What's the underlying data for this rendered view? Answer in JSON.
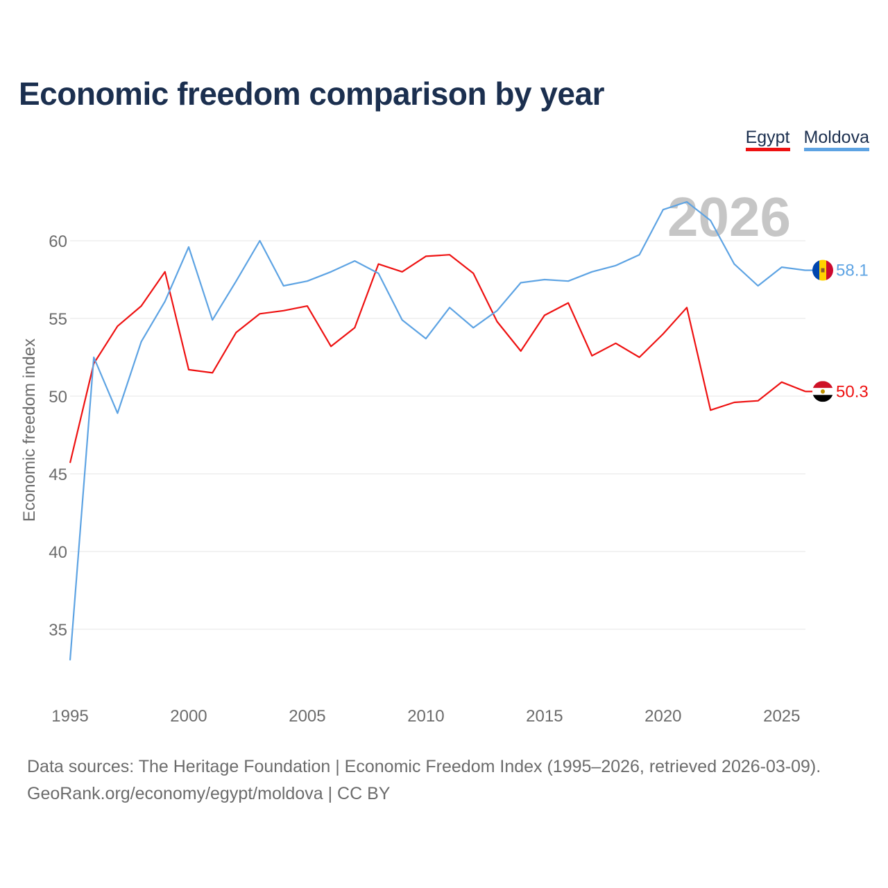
{
  "title": "Economic freedom comparison by year",
  "legend": [
    {
      "name": "Egypt",
      "color": "#ee1111"
    },
    {
      "name": "Moldova",
      "color": "#5da3e3"
    }
  ],
  "footer": {
    "line1": "Data sources: The Heritage Foundation | Economic Freedom Index (1995–2026, retrieved 2026-03-09).",
    "line2": "GeoRank.org/economy/egypt/moldova | CC BY"
  },
  "chart_data": {
    "type": "line",
    "title": "Economic freedom comparison by year",
    "xlabel": "",
    "ylabel": "Economic freedom index",
    "year_label": "2026",
    "xlim": [
      1995,
      2026
    ],
    "ylim": [
      31,
      65
    ],
    "xticks": [
      1995,
      2000,
      2005,
      2010,
      2015,
      2020,
      2025
    ],
    "yticks": [
      35,
      40,
      45,
      50,
      55,
      60
    ],
    "x": [
      1995,
      1996,
      1997,
      1998,
      1999,
      2000,
      2001,
      2002,
      2003,
      2004,
      2005,
      2006,
      2007,
      2008,
      2009,
      2010,
      2011,
      2012,
      2013,
      2014,
      2015,
      2016,
      2017,
      2018,
      2019,
      2020,
      2021,
      2022,
      2023,
      2024,
      2025,
      2026
    ],
    "series": [
      {
        "name": "Egypt",
        "color": "#ee1111",
        "end_label": "50.3",
        "flag": "egypt-flag",
        "values": [
          45.7,
          52.1,
          54.5,
          55.8,
          58.0,
          51.7,
          51.5,
          54.1,
          55.3,
          55.5,
          55.8,
          53.2,
          54.4,
          58.5,
          58.0,
          59.0,
          59.1,
          57.9,
          54.8,
          52.9,
          55.2,
          56.0,
          52.6,
          53.4,
          52.5,
          54.0,
          55.7,
          49.1,
          49.6,
          49.7,
          50.9,
          50.3
        ]
      },
      {
        "name": "Moldova",
        "color": "#5da3e3",
        "end_label": "58.1",
        "flag": "moldova-flag",
        "values": [
          33.0,
          52.5,
          48.9,
          53.5,
          56.1,
          59.6,
          54.9,
          57.4,
          60.0,
          57.1,
          57.4,
          58.0,
          58.7,
          57.9,
          54.9,
          53.7,
          55.7,
          54.4,
          55.5,
          57.3,
          57.5,
          57.4,
          58.0,
          58.4,
          59.1,
          62.0,
          62.5,
          61.3,
          58.5,
          57.1,
          58.3,
          58.1
        ]
      }
    ]
  }
}
